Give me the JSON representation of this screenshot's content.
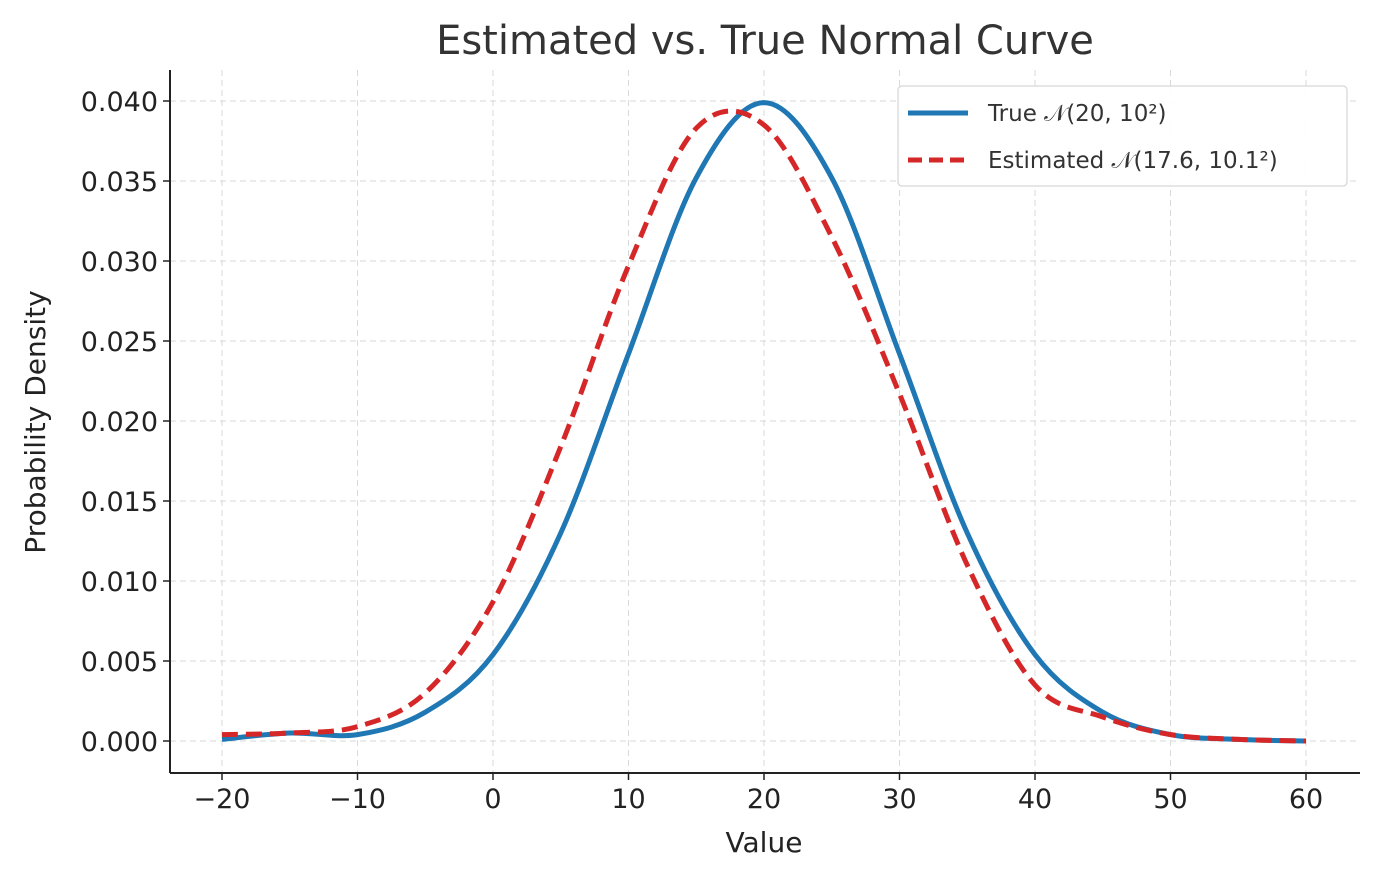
{
  "chart_data": {
    "type": "line",
    "title": "Estimated vs. True Normal Curve",
    "xlabel": "Value",
    "ylabel": "Probability Density",
    "xlim": [
      -24,
      64
    ],
    "ylim": [
      -0.002,
      0.042
    ],
    "grid": true,
    "legend_position": "top-right",
    "x_ticks": [
      -20,
      -10,
      0,
      10,
      20,
      30,
      40,
      50,
      60
    ],
    "x_tick_labels": [
      "−20",
      "−10",
      "0",
      "10",
      "20",
      "30",
      "40",
      "50",
      "60"
    ],
    "y_ticks": [
      0,
      0.005,
      0.01,
      0.015,
      0.02,
      0.025,
      0.03,
      0.035,
      0.04
    ],
    "y_tick_labels": [
      "0.000",
      "0.005",
      "0.010",
      "0.015",
      "0.020",
      "0.025",
      "0.030",
      "0.035",
      "0.040"
    ],
    "x": [
      -20,
      -15,
      -10,
      -5,
      0,
      5,
      10,
      15,
      20,
      25,
      30,
      35,
      40,
      45,
      50,
      55,
      60
    ],
    "series": [
      {
        "name": "True 𝒩(20, 10²)",
        "color": "#1f77b4",
        "style": "solid",
        "values": [
          0.0001,
          0.0005,
          0.0004,
          0.0018,
          0.0054,
          0.013,
          0.0242,
          0.0352,
          0.0399,
          0.0352,
          0.0242,
          0.013,
          0.0054,
          0.0018,
          0.0004,
          0.0001,
          0.0
        ]
      },
      {
        "name": "Estimated 𝒩(17.6, 10.1²)",
        "color": "#d62728",
        "style": "dashed",
        "values": [
          0.0004,
          0.0005,
          0.0009,
          0.003,
          0.0087,
          0.0184,
          0.0297,
          0.0383,
          0.0385,
          0.0315,
          0.0217,
          0.011,
          0.0035,
          0.0015,
          0.0004,
          0.0001,
          0.0
        ]
      }
    ]
  }
}
